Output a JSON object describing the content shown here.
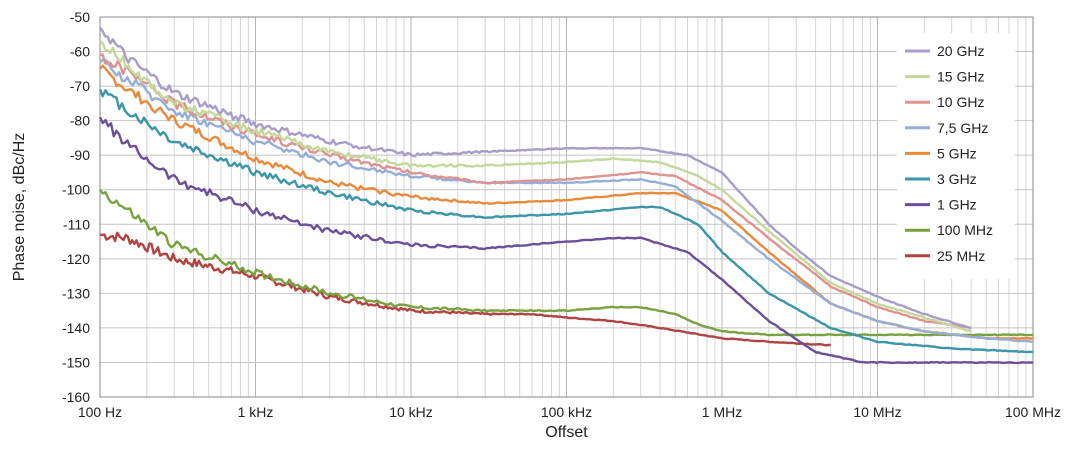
{
  "chart_data": {
    "type": "line",
    "title": "",
    "xlabel": "Offset",
    "ylabel": "Phase noise, dBc/Hz",
    "x_scale": "log",
    "xlim": [
      100,
      100000000
    ],
    "ylim": [
      -160,
      -50
    ],
    "x_ticks": [
      {
        "value": 100,
        "label": "100 Hz"
      },
      {
        "value": 1000,
        "label": "1 kHz"
      },
      {
        "value": 10000,
        "label": "10 kHz"
      },
      {
        "value": 100000,
        "label": "100 kHz"
      },
      {
        "value": 1000000,
        "label": "1 MHz"
      },
      {
        "value": 10000000,
        "label": "10 MHz"
      },
      {
        "value": 100000000,
        "label": "100 MHz"
      }
    ],
    "y_ticks": [
      -50,
      -60,
      -70,
      -80,
      -90,
      -100,
      -110,
      -120,
      -130,
      -140,
      -150,
      -160
    ],
    "grid": true,
    "legend_position": "right",
    "series": [
      {
        "name": "20 GHz",
        "color": "#a89cc8",
        "x": [
          100,
          150,
          300,
          1000,
          3000,
          10000,
          30000,
          100000,
          300000,
          600000,
          1000000,
          2000000,
          3000000,
          5000000,
          10000000,
          20000000,
          40000000
        ],
        "y": [
          -53,
          -62,
          -72,
          -81,
          -86,
          -90,
          -89,
          -88,
          -88,
          -90,
          -95,
          -110,
          -117,
          -125,
          -131,
          -136,
          -140
        ]
      },
      {
        "name": "15 GHz",
        "color": "#c4d89a",
        "x": [
          100,
          150,
          300,
          1000,
          3000,
          10000,
          30000,
          100000,
          200000,
          400000,
          700000,
          1000000,
          2000000,
          5000000,
          10000000,
          20000000,
          40000000
        ],
        "y": [
          -57,
          -64,
          -75,
          -83,
          -89,
          -93,
          -93,
          -92,
          -91,
          -92,
          -96,
          -100,
          -112,
          -127,
          -133,
          -137,
          -141
        ]
      },
      {
        "name": "10 GHz",
        "color": "#de9391",
        "x": [
          100,
          150,
          300,
          1000,
          3000,
          10000,
          30000,
          100000,
          300000,
          500000,
          1000000,
          2000000,
          5000000,
          10000000,
          20000000,
          40000000
        ],
        "y": [
          -61,
          -66,
          -75,
          -84,
          -90,
          -95,
          -98,
          -97,
          -95,
          -96,
          -103,
          -114,
          -128,
          -134,
          -138,
          -140
        ]
      },
      {
        "name": "7,5 GHz",
        "color": "#95aed8",
        "x": [
          100,
          150,
          300,
          1000,
          3000,
          10000,
          30000,
          100000,
          300000,
          500000,
          1000000,
          2000000,
          5000000,
          10000000,
          20000000,
          50000000,
          100000000
        ],
        "y": [
          -63,
          -68,
          -77,
          -86,
          -92,
          -96,
          -98,
          -98,
          -97,
          -99,
          -109,
          -120,
          -133,
          -138,
          -141,
          -143,
          -144
        ]
      },
      {
        "name": "5 GHz",
        "color": "#e98a3a",
        "x": [
          100,
          150,
          300,
          1000,
          3000,
          10000,
          30000,
          100000,
          300000,
          500000,
          1000000,
          2000000,
          5000000,
          10000000,
          20000000,
          50000000,
          100000000
        ],
        "y": [
          -65,
          -71,
          -80,
          -91,
          -98,
          -102,
          -104,
          -103,
          -101,
          -101,
          -106,
          -118,
          -133,
          -138,
          -141,
          -143,
          -143
        ]
      },
      {
        "name": "3 GHz",
        "color": "#3a96a8",
        "x": [
          100,
          150,
          300,
          1000,
          3000,
          10000,
          30000,
          100000,
          300000,
          400000,
          700000,
          1000000,
          2000000,
          5000000,
          10000000,
          30000000,
          100000000
        ],
        "y": [
          -71,
          -77,
          -86,
          -95,
          -101,
          -106,
          -108,
          -107,
          -105,
          -105,
          -110,
          -118,
          -130,
          -140,
          -144,
          -146,
          -147
        ]
      },
      {
        "name": "1 GHz",
        "color": "#6b4f98",
        "x": [
          100,
          150,
          300,
          1000,
          3000,
          10000,
          30000,
          100000,
          200000,
          300000,
          600000,
          1000000,
          2000000,
          4000000,
          8000000,
          20000000,
          100000000
        ],
        "y": [
          -79,
          -87,
          -97,
          -106,
          -112,
          -116,
          -117,
          -115,
          -114,
          -114,
          -118,
          -126,
          -138,
          -147,
          -150,
          -150,
          -150
        ]
      },
      {
        "name": "100 MHz",
        "color": "#78a23e",
        "x": [
          100,
          150,
          300,
          1000,
          3000,
          10000,
          30000,
          100000,
          200000,
          300000,
          500000,
          700000,
          1000000,
          2000000,
          5000000,
          20000000,
          100000000
        ],
        "y": [
          -100,
          -106,
          -116,
          -124,
          -130,
          -134,
          -135,
          -135,
          -134,
          -134,
          -136,
          -139,
          -141,
          -142,
          -142,
          -142,
          -142
        ]
      },
      {
        "name": "25 MHz",
        "color": "#b14442",
        "x": [
          100,
          150,
          300,
          1000,
          3000,
          10000,
          30000,
          60000,
          100000,
          200000,
          400000,
          1000000,
          2000000,
          5000000
        ],
        "y": [
          -113,
          -114,
          -120,
          -125,
          -131,
          -135,
          -136,
          -136,
          -137,
          -138,
          -140,
          -143,
          -144,
          -145
        ]
      }
    ]
  }
}
